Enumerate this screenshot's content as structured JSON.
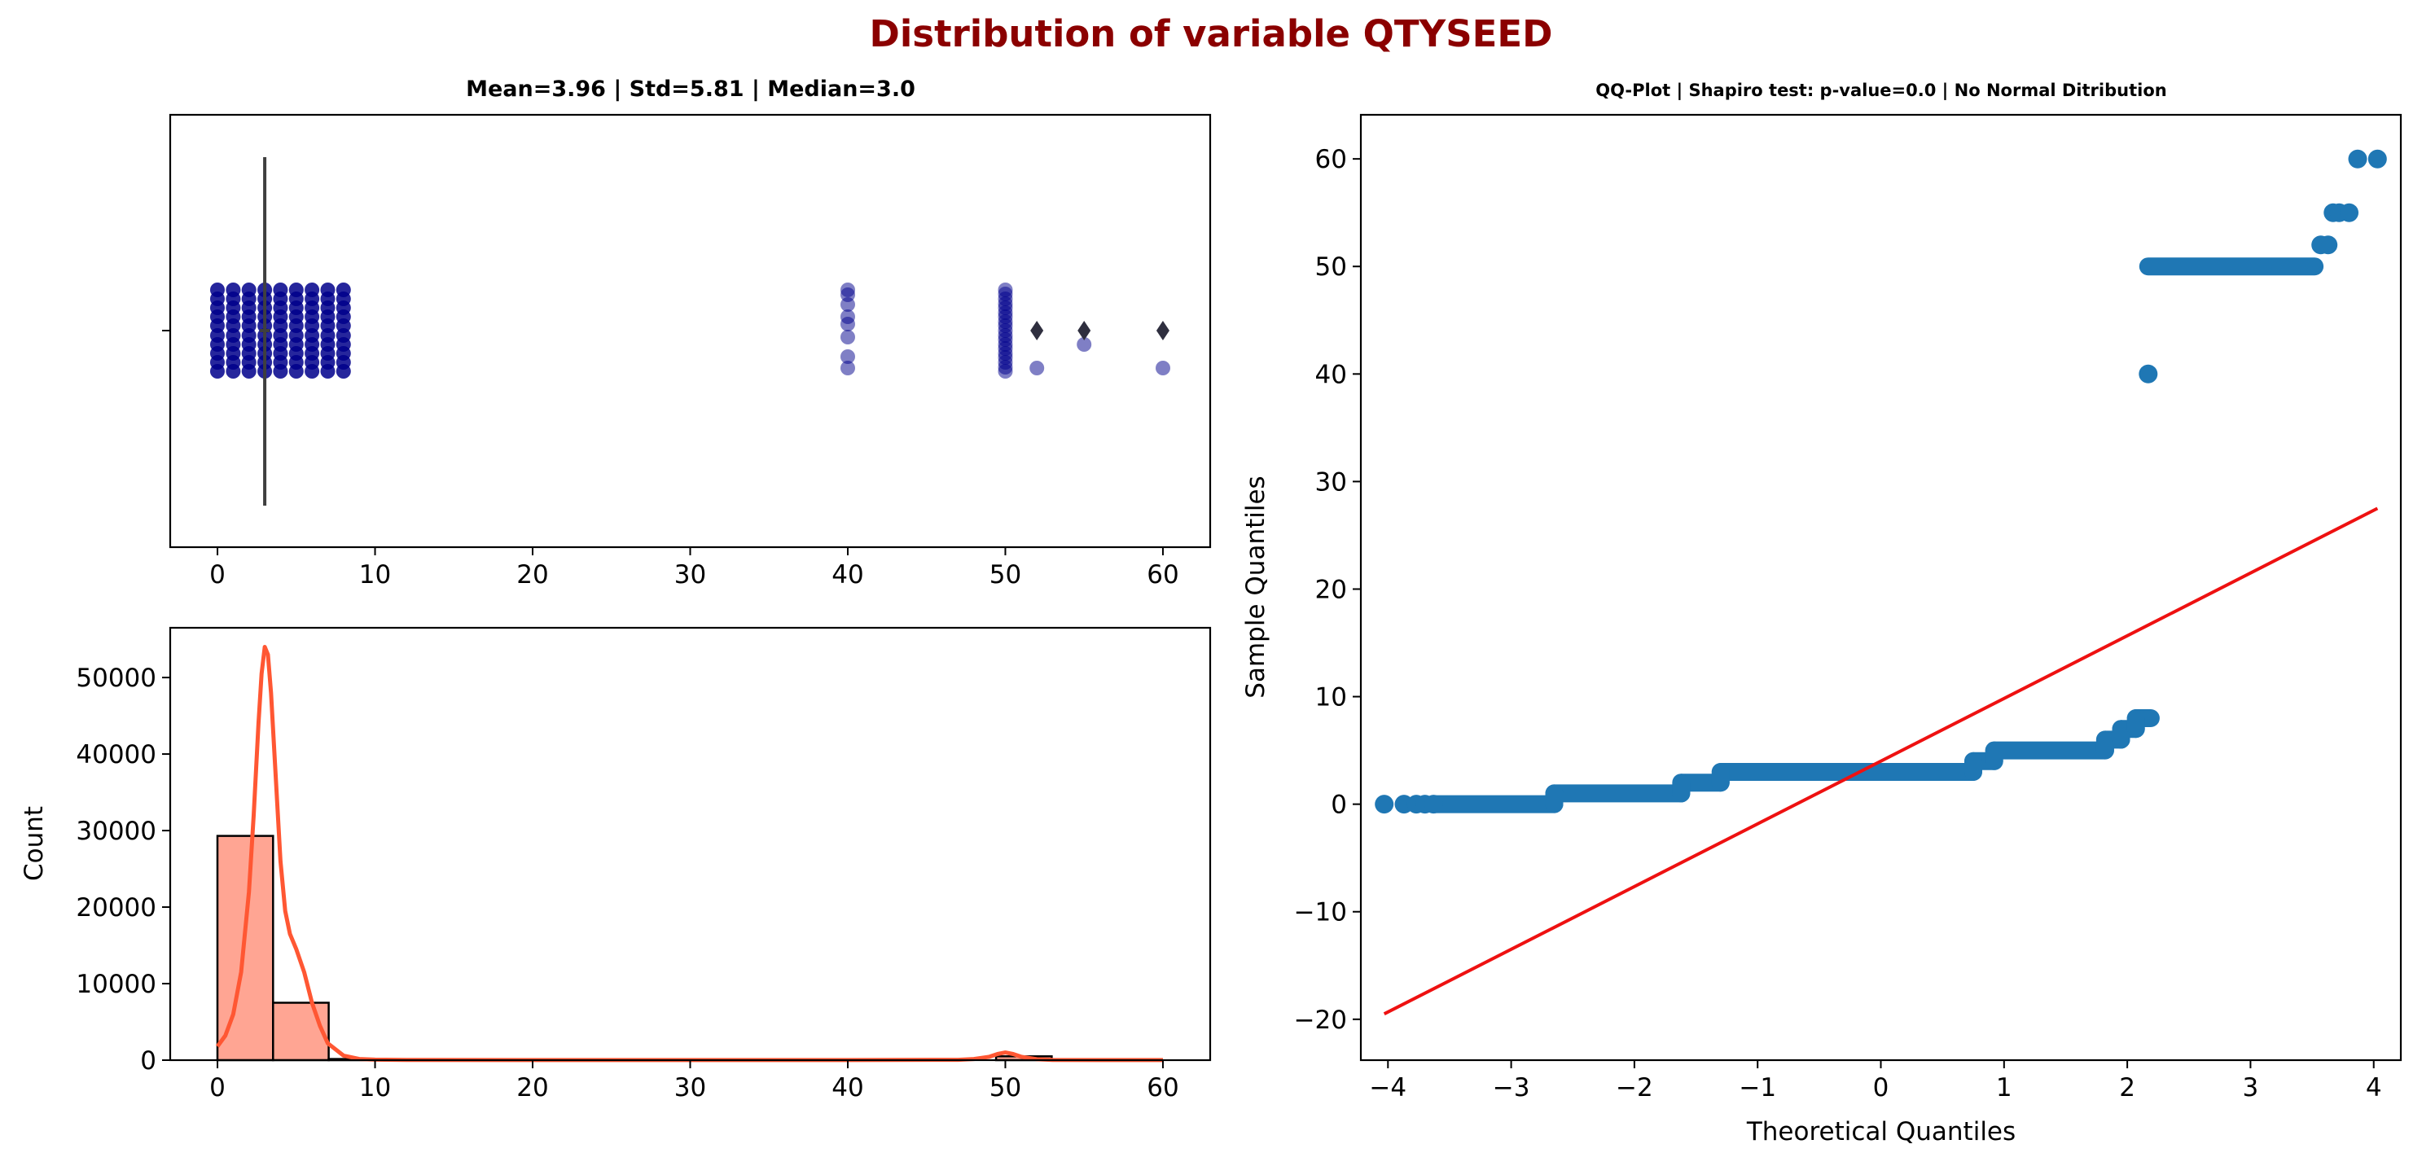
{
  "figure": {
    "title": "Distribution of variable QTYSEED",
    "title_color": "#8b0000"
  },
  "chart_data": [
    {
      "type": "box",
      "panel": "boxplot-stripplot",
      "title": "Mean=3.96 | Std=5.81 | Median=3.0",
      "xlim": [
        -3,
        63
      ],
      "xticks": [
        0,
        10,
        20,
        30,
        40,
        50,
        60
      ],
      "box": {
        "whisker_low": 3.0,
        "whisker_high": 3.0,
        "median": 3.0,
        "q1": 3.0,
        "q3": 3.0
      },
      "outliers": [
        52,
        55,
        60
      ],
      "strip_values": [
        0,
        1,
        2,
        3,
        4,
        5,
        6,
        7,
        8,
        40,
        50,
        52,
        55,
        60
      ],
      "strip_color": "#00008b",
      "outlier_color": "#2f2f3f",
      "whisker_color": "#3f3f3f"
    },
    {
      "type": "histogram",
      "panel": "histogram-kde",
      "ylabel": "Count",
      "xlim": [
        -3,
        63
      ],
      "ylim": [
        0,
        56500
      ],
      "xticks": [
        0,
        10,
        20,
        30,
        40,
        50,
        60
      ],
      "yticks": [
        0,
        10000,
        20000,
        30000,
        40000,
        50000
      ],
      "bins": [
        {
          "start": 0,
          "end": 3.53,
          "count": 29300
        },
        {
          "start": 3.53,
          "end": 7.06,
          "count": 7500
        },
        {
          "start": 7.06,
          "end": 10.59,
          "count": 150
        },
        {
          "start": 49.41,
          "end": 52.94,
          "count": 500
        }
      ],
      "bin_color": "#ffa593",
      "kde": {
        "x": [
          0,
          0.5,
          1,
          1.5,
          2,
          2.3,
          2.6,
          2.8,
          3.0,
          3.2,
          3.4,
          3.7,
          4.0,
          4.3,
          4.6,
          5.0,
          5.5,
          6.0,
          6.5,
          7.0,
          8.0,
          9.0,
          10.0,
          12,
          20,
          30,
          40,
          47,
          48,
          49,
          49.5,
          50,
          50.5,
          51,
          52,
          53,
          56,
          60
        ],
        "y": [
          1800,
          3200,
          6000,
          11500,
          22000,
          32000,
          44000,
          50500,
          54000,
          53000,
          48000,
          37000,
          26000,
          19500,
          16500,
          14500,
          11500,
          7500,
          4500,
          2200,
          600,
          150,
          60,
          20,
          10,
          10,
          10,
          40,
          150,
          450,
          800,
          1000,
          800,
          450,
          120,
          30,
          10,
          10
        ],
        "color": "#ff5733"
      }
    },
    {
      "type": "scatter",
      "panel": "qq-plot",
      "title": "QQ-Plot | Shapiro test: p-value=0.0 | No Normal Ditribution",
      "xlabel": "Theoretical Quantiles",
      "ylabel": "Sample Quantiles",
      "xlim": [
        -4.22,
        4.22
      ],
      "ylim": [
        -23.8,
        64.1
      ],
      "xticks": [
        -4,
        -3,
        -2,
        -1,
        0,
        1,
        2,
        3,
        4
      ],
      "yticks": [
        -20,
        -10,
        0,
        10,
        20,
        30,
        40,
        50,
        60
      ],
      "points": [
        {
          "x": -4.03,
          "y": 0
        },
        {
          "x": -3.87,
          "y": 0
        },
        {
          "x": -3.77,
          "y": 0
        },
        {
          "x": -3.7,
          "y": 0
        },
        {
          "x": -3.63,
          "y": 0
        },
        {
          "x": 2.17,
          "y": 40
        },
        {
          "x": 3.57,
          "y": 52
        },
        {
          "x": 3.63,
          "y": 52
        },
        {
          "x": 3.67,
          "y": 55
        },
        {
          "x": 3.72,
          "y": 55
        },
        {
          "x": 3.8,
          "y": 55
        },
        {
          "x": 3.87,
          "y": 60
        },
        {
          "x": 4.03,
          "y": 60
        }
      ],
      "segments": [
        {
          "x0": -3.63,
          "x1": -2.65,
          "y": 0
        },
        {
          "x0": -2.65,
          "x1": -1.62,
          "y": 1
        },
        {
          "x0": -1.62,
          "x1": -1.3,
          "y": 2
        },
        {
          "x0": -1.3,
          "x1": 0.75,
          "y": 3
        },
        {
          "x0": 0.75,
          "x1": 0.92,
          "y": 4
        },
        {
          "x0": 0.92,
          "x1": 1.82,
          "y": 5
        },
        {
          "x0": 1.82,
          "x1": 1.95,
          "y": 6
        },
        {
          "x0": 1.95,
          "x1": 2.07,
          "y": 7
        },
        {
          "x0": 2.07,
          "x1": 2.19,
          "y": 8
        },
        {
          "x0": 2.17,
          "x1": 3.52,
          "y": 50
        }
      ],
      "point_color": "#1f77b4",
      "reference_line": {
        "x": [
          -4.03,
          4.03
        ],
        "y": [
          -19.5,
          27.5
        ],
        "color": "#ee1111"
      }
    }
  ]
}
